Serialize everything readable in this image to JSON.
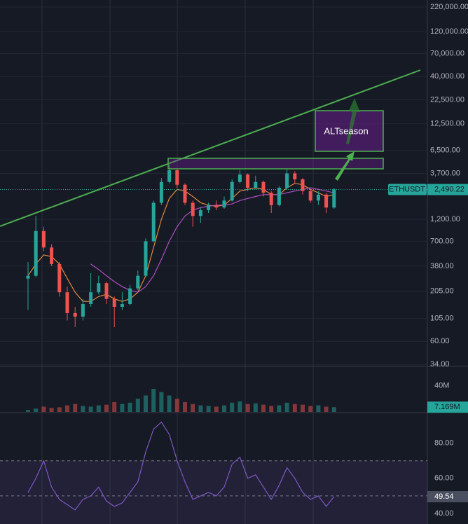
{
  "chart_data": [
    {
      "type": "candlestick",
      "symbol": "ETHUSDT",
      "log_scale": true,
      "grid": true,
      "up_color": "#26a69a",
      "down_color": "#ef5350",
      "open": [
        280,
        300,
        900,
        600,
        400,
        200,
        120,
        110,
        150,
        200,
        250,
        170,
        140,
        150,
        220,
        300,
        700,
        1800,
        3000,
        4000,
        2800,
        1800,
        1300,
        1500,
        1700,
        1600,
        1900,
        3000,
        3600,
        2600,
        3000,
        2300,
        1700,
        2600,
        3700,
        3200,
        2400,
        1900,
        2200,
        1600
      ],
      "high": [
        420,
        1300,
        1000,
        650,
        420,
        230,
        140,
        170,
        320,
        300,
        260,
        180,
        200,
        240,
        340,
        750,
        1900,
        3300,
        4600,
        4100,
        2900,
        1900,
        1600,
        1800,
        1900,
        2100,
        3200,
        4000,
        3700,
        3500,
        3100,
        2400,
        2700,
        4100,
        3900,
        3300,
        2500,
        2400,
        2300,
        2600
      ],
      "low": [
        130,
        290,
        550,
        380,
        180,
        100,
        85,
        100,
        140,
        190,
        150,
        85,
        130,
        145,
        210,
        290,
        680,
        1700,
        2900,
        2600,
        1700,
        1000,
        1100,
        1400,
        1500,
        1550,
        1850,
        2900,
        2400,
        2500,
        2100,
        1400,
        1650,
        2500,
        2900,
        2200,
        1800,
        1700,
        1400,
        1550
      ],
      "close": [
        300,
        900,
        600,
        400,
        200,
        120,
        110,
        150,
        200,
        250,
        170,
        140,
        150,
        220,
        300,
        700,
        1800,
        3000,
        4000,
        2800,
        1800,
        1300,
        1500,
        1700,
        1600,
        1900,
        3000,
        3600,
        2600,
        3000,
        2300,
        1700,
        2600,
        3700,
        3200,
        2400,
        1900,
        2200,
        1600,
        2490.22
      ],
      "close_label": "2,490.22",
      "overlays": [
        {
          "color": "#e08a3c",
          "values": [
            300,
            400,
            500,
            480,
            400,
            280,
            200,
            160,
            160,
            180,
            190,
            170,
            160,
            170,
            200,
            300,
            600,
            1200,
            2000,
            2500,
            2400,
            2100,
            1800,
            1700,
            1650,
            1700,
            2000,
            2400,
            2500,
            2600,
            2500,
            2200,
            2200,
            2600,
            2900,
            2800,
            2500,
            2300,
            2100,
            2200
          ]
        },
        {
          "color": "#b04fc4",
          "values": [
            null,
            null,
            null,
            null,
            null,
            null,
            null,
            null,
            400,
            350,
            300,
            260,
            230,
            210,
            200,
            230,
            300,
            450,
            700,
            1000,
            1300,
            1500,
            1600,
            1650,
            1700,
            1700,
            1750,
            1900,
            2000,
            2100,
            2200,
            2200,
            2200,
            2300,
            2400,
            2500,
            2600,
            2500,
            2400,
            2300
          ]
        }
      ],
      "ylim": [
        33,
        261000
      ],
      "yticks": [
        {
          "value": 220000,
          "label": "220,000.00"
        },
        {
          "value": 120000,
          "label": "120,000.00"
        },
        {
          "value": 70000,
          "label": "70,000.00"
        },
        {
          "value": 40000,
          "label": "40,000.00"
        },
        {
          "value": 22500,
          "label": "22,500.00"
        },
        {
          "value": 12500,
          "label": "12,500.00"
        },
        {
          "value": 6500,
          "label": "6,500.00"
        },
        {
          "value": 3700,
          "label": "3,700.00"
        },
        {
          "value": 1200,
          "label": "1,200.00"
        },
        {
          "value": 700,
          "label": "700.00"
        },
        {
          "value": 380,
          "label": "380.00"
        },
        {
          "value": 205,
          "label": "205.00"
        },
        {
          "value": 105,
          "label": "105.00"
        },
        {
          "value": 60,
          "label": "60.00"
        },
        {
          "value": 34,
          "label": "34.00"
        }
      ],
      "annotations": [
        "ALTseason"
      ]
    },
    {
      "type": "bar",
      "values": [
        3,
        5,
        8,
        6,
        7,
        10,
        12,
        9,
        8,
        10,
        11,
        15,
        12,
        14,
        20,
        25,
        35,
        30,
        25,
        20,
        15,
        12,
        10,
        9,
        8,
        10,
        14,
        16,
        12,
        13,
        11,
        9,
        10,
        14,
        12,
        11,
        9,
        10,
        8,
        7.169
      ],
      "value_labels": [
        null,
        null,
        null,
        null,
        null,
        null,
        null,
        null,
        null,
        null,
        null,
        null,
        null,
        null,
        null,
        null,
        null,
        null,
        null,
        null,
        null,
        null,
        null,
        null,
        null,
        null,
        null,
        null,
        null,
        null,
        null,
        null,
        null,
        null,
        null,
        null,
        null,
        null,
        null,
        "7.169M"
      ],
      "ylim": [
        0,
        67
      ],
      "yticks": [
        {
          "value": 40,
          "label": "40M"
        }
      ]
    },
    {
      "type": "line",
      "color": "#7e57c2",
      "values": [
        52,
        60,
        70,
        55,
        48,
        45,
        42,
        48,
        50,
        55,
        47,
        44,
        46,
        52,
        58,
        75,
        88,
        92,
        85,
        70,
        58,
        48,
        50,
        52,
        50,
        55,
        68,
        72,
        60,
        62,
        55,
        48,
        56,
        66,
        60,
        52,
        48,
        50,
        44,
        49.54
      ],
      "value_labels": [
        null,
        null,
        null,
        null,
        null,
        null,
        null,
        null,
        null,
        null,
        null,
        null,
        null,
        null,
        null,
        null,
        null,
        null,
        null,
        null,
        null,
        null,
        null,
        null,
        null,
        null,
        null,
        null,
        null,
        null,
        null,
        null,
        null,
        null,
        null,
        null,
        null,
        null,
        null,
        "49.54"
      ],
      "band": [
        30,
        70
      ],
      "midline": 50,
      "ylim": [
        34,
        97
      ],
      "yticks": [
        {
          "value": 80,
          "label": "80.00"
        },
        {
          "value": 60,
          "label": "60.00"
        },
        {
          "value": 40,
          "label": "40.00"
        }
      ]
    }
  ]
}
